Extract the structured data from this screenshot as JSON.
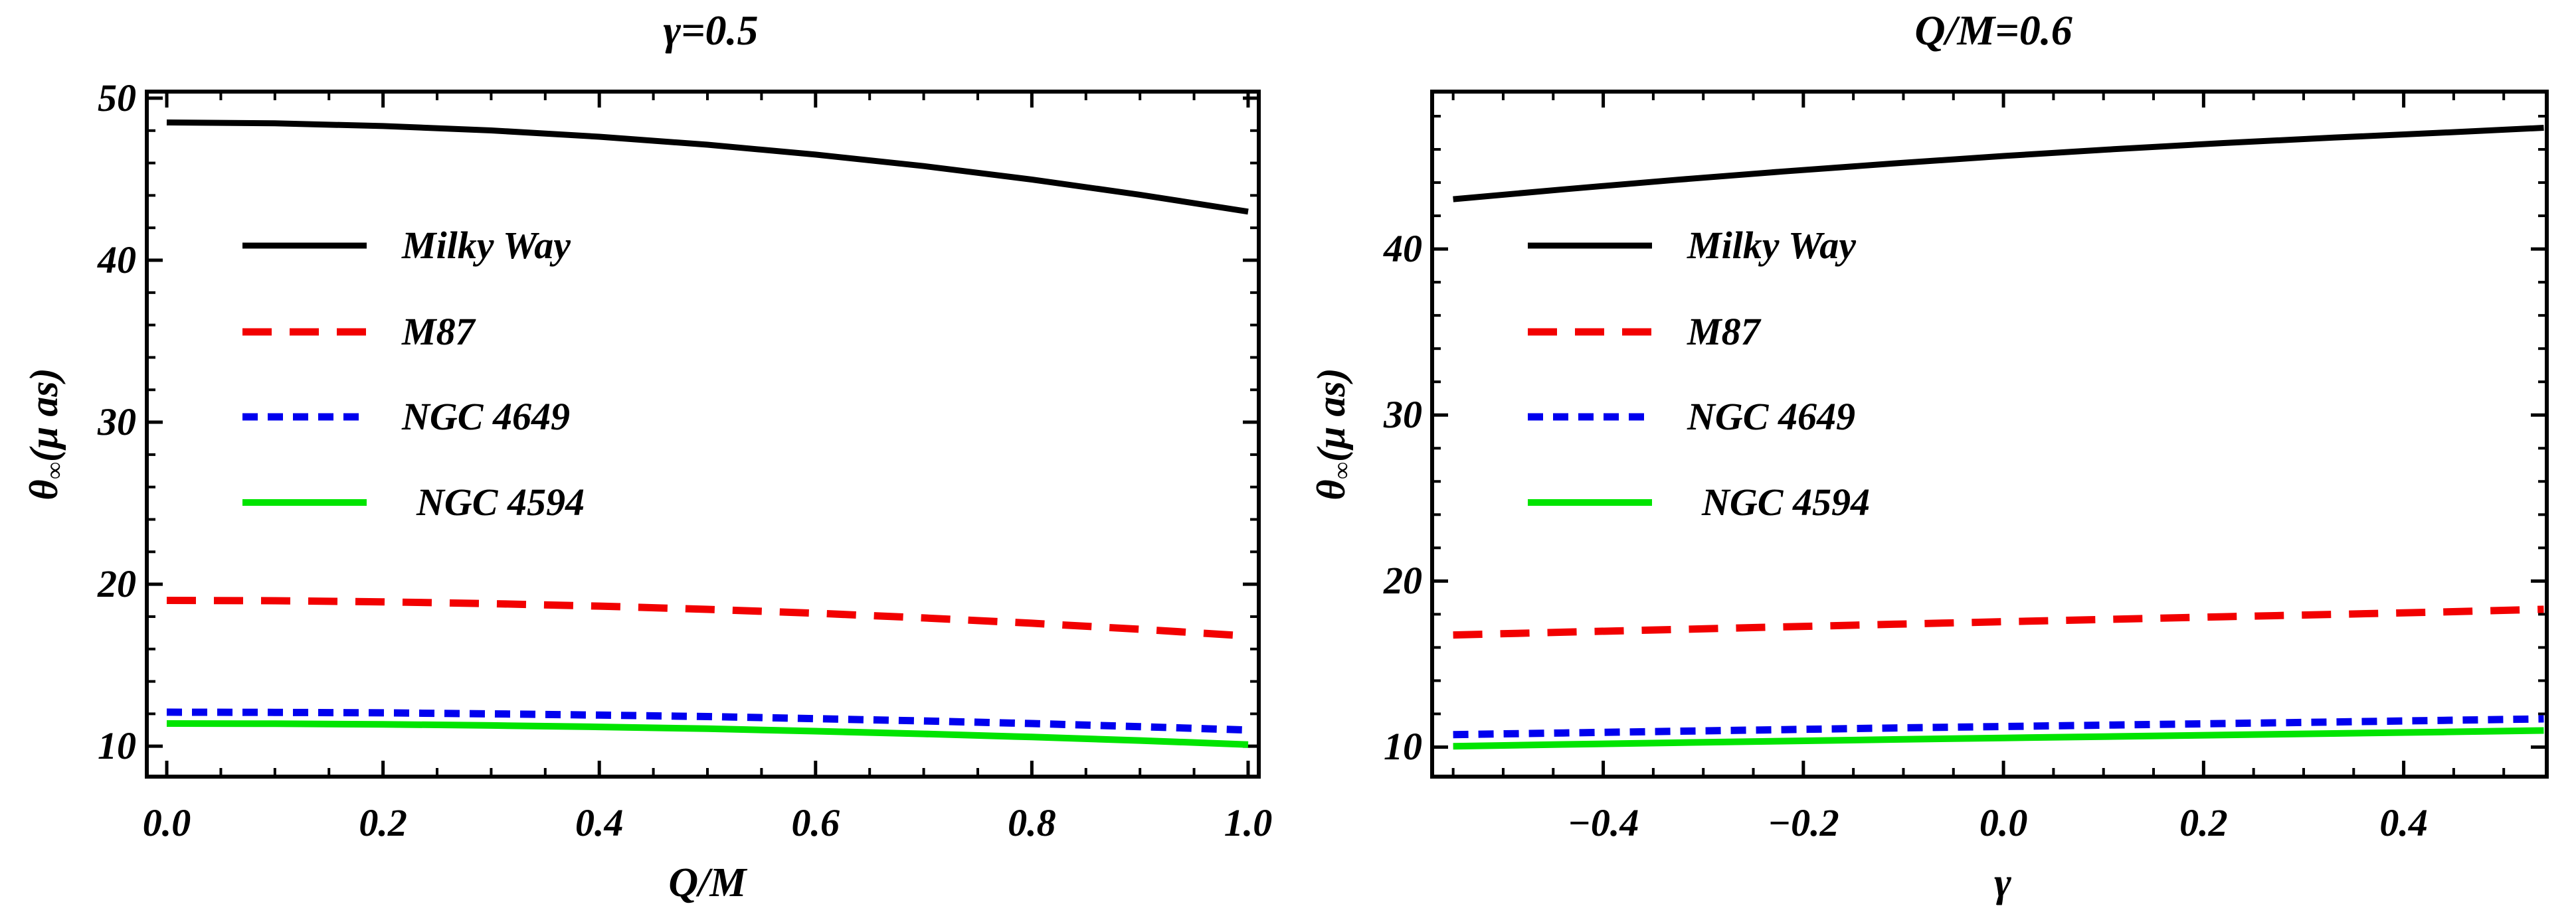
{
  "figure": {
    "background": "#ffffff",
    "text_color": "#000000"
  },
  "chart_data": [
    {
      "type": "line",
      "title": "γ=0.5",
      "xlabel": "Q/M",
      "ylabel": {
        "base": "θ",
        "sub": "∞",
        "units": "(μ as)"
      },
      "xlim": [
        -0.0203,
        1.0117
      ],
      "ylim": [
        8.0,
        50.53
      ],
      "grid": false,
      "legend_position": "upper-left-inside",
      "xticks": {
        "values": [
          0,
          0.2,
          0.4,
          0.6,
          0.8,
          1.0
        ],
        "labels": [
          "0.0",
          "0.2",
          "0.4",
          "0.6",
          "0.8",
          "1.0"
        ],
        "minor_step": 0.05
      },
      "yticks": {
        "values": [
          10,
          20,
          30,
          40,
          50
        ],
        "labels": [
          "10",
          "20",
          "30",
          "40",
          "50"
        ],
        "minor_step": 2
      },
      "series": [
        {
          "name": "Milky Way",
          "color": "#000000",
          "style": "solid",
          "width": 9,
          "x": [
            0,
            0.1,
            0.2,
            0.3,
            0.4,
            0.5,
            0.6,
            0.7,
            0.8,
            0.9,
            1.0
          ],
          "y": [
            48.5,
            48.45,
            48.28,
            48.01,
            47.62,
            47.13,
            46.52,
            45.81,
            44.98,
            44.04,
            43.0
          ]
        },
        {
          "name": "M87",
          "color": "#f20000",
          "style": "dashed",
          "dash": [
            44,
            27
          ],
          "width": 11,
          "x": [
            0,
            0.1,
            0.2,
            0.3,
            0.4,
            0.5,
            0.6,
            0.7,
            0.8,
            0.9,
            1.0
          ],
          "y": [
            19.0,
            18.98,
            18.91,
            18.8,
            18.65,
            18.45,
            18.21,
            17.92,
            17.59,
            17.22,
            16.8
          ]
        },
        {
          "name": "NGC 4649",
          "color": "#0000ee",
          "style": "dashed",
          "dash": [
            23,
            15
          ],
          "width": 11,
          "x": [
            0,
            0.1,
            0.2,
            0.3,
            0.4,
            0.5,
            0.6,
            0.7,
            0.8,
            0.9,
            1.0
          ],
          "y": [
            12.1,
            12.09,
            12.06,
            12.0,
            11.92,
            11.83,
            11.7,
            11.56,
            11.4,
            11.21,
            11.0
          ]
        },
        {
          "name": "NGC 4594",
          "color": "#00e400",
          "style": "solid",
          "width": 10,
          "legend_indent": 22,
          "x": [
            0,
            0.1,
            0.2,
            0.3,
            0.4,
            0.5,
            0.6,
            0.7,
            0.8,
            0.9,
            1.0
          ],
          "y": [
            11.4,
            11.39,
            11.35,
            11.28,
            11.19,
            11.08,
            10.93,
            10.76,
            10.57,
            10.35,
            10.1
          ]
        }
      ]
    },
    {
      "type": "line",
      "title": "Q/M=0.6",
      "xlabel": "γ",
      "ylabel": {
        "base": "θ",
        "sub": "∞",
        "units": "(μ as)"
      },
      "xlim": [
        -0.573,
        0.545
      ],
      "ylim": [
        8.1,
        49.6
      ],
      "grid": false,
      "legend_position": "upper-left-inside",
      "xticks": {
        "values": [
          -0.4,
          -0.2,
          0,
          0.2,
          0.4
        ],
        "labels": [
          "−0.4",
          "−0.2",
          "0.0",
          "0.2",
          "0.4"
        ],
        "minor_step": 0.05
      },
      "yticks": {
        "values": [
          10,
          20,
          30,
          40
        ],
        "labels": [
          "10",
          "20",
          "30",
          "40"
        ],
        "minor_step": 2
      },
      "series": [
        {
          "name": "Milky Way",
          "color": "#000000",
          "style": "solid",
          "width": 9,
          "x": [
            -0.55,
            -0.44,
            -0.33,
            -0.22,
            -0.11,
            0,
            0.11,
            0.22,
            0.33,
            0.44,
            0.54
          ],
          "y": [
            43.0,
            43.59,
            44.15,
            44.67,
            45.15,
            45.6,
            46.01,
            46.38,
            46.71,
            47.01,
            47.3
          ]
        },
        {
          "name": "M87",
          "color": "#f20000",
          "style": "dashed",
          "dash": [
            44,
            27
          ],
          "width": 11,
          "x": [
            -0.55,
            -0.44,
            -0.33,
            -0.22,
            -0.11,
            0,
            0.11,
            0.22,
            0.33,
            0.44,
            0.54
          ],
          "y": [
            16.75,
            16.92,
            17.08,
            17.24,
            17.4,
            17.55,
            17.7,
            17.85,
            17.99,
            18.14,
            18.3
          ]
        },
        {
          "name": "NGC 4649",
          "color": "#0000ee",
          "style": "dashed",
          "dash": [
            23,
            15
          ],
          "width": 11,
          "x": [
            -0.55,
            -0.44,
            -0.33,
            -0.22,
            -0.11,
            0,
            0.11,
            0.22,
            0.33,
            0.44,
            0.54
          ],
          "y": [
            10.75,
            10.85,
            10.95,
            11.05,
            11.15,
            11.24,
            11.33,
            11.42,
            11.51,
            11.61,
            11.7
          ]
        },
        {
          "name": "NGC 4594",
          "color": "#00e400",
          "style": "solid",
          "width": 10,
          "legend_indent": 22,
          "x": [
            -0.55,
            -0.44,
            -0.33,
            -0.22,
            -0.11,
            0,
            0.11,
            0.22,
            0.33,
            0.44,
            0.54
          ],
          "y": [
            10.05,
            10.16,
            10.26,
            10.36,
            10.46,
            10.55,
            10.64,
            10.73,
            10.82,
            10.91,
            11.0
          ]
        }
      ]
    }
  ]
}
